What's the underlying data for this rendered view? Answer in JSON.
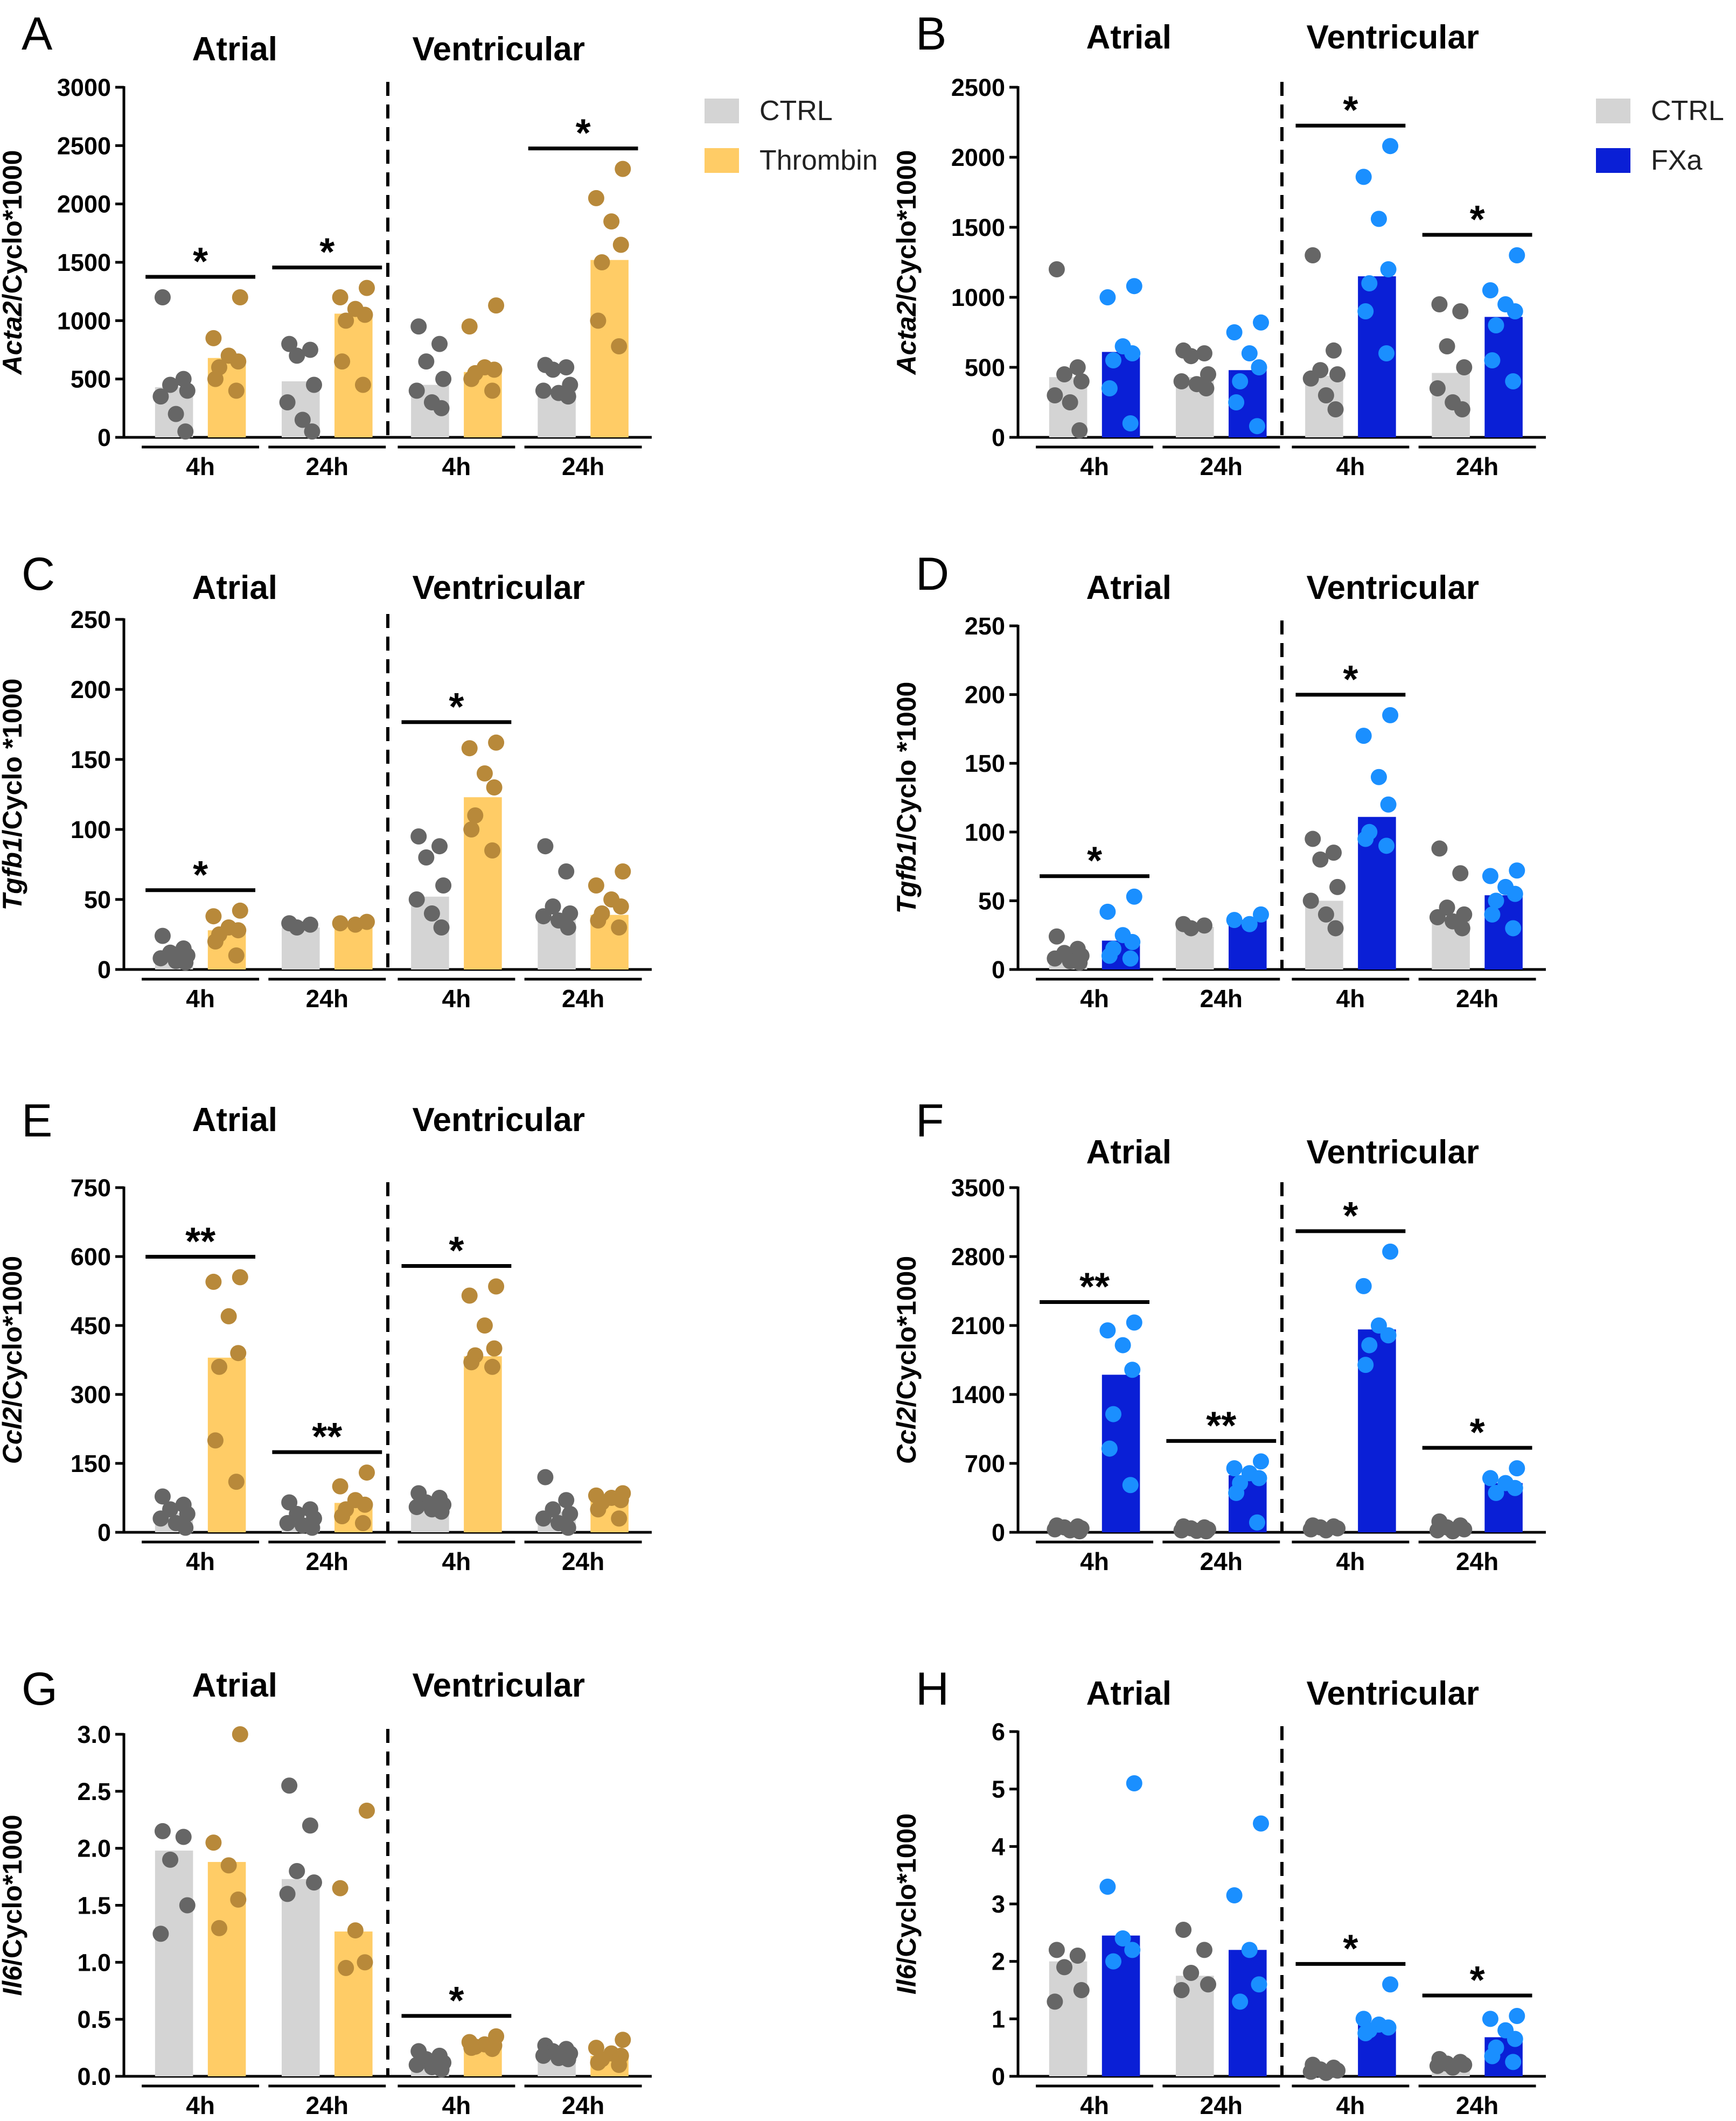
{
  "labels": {
    "atrial": "Atrial",
    "ventricular": "Ventricular",
    "t4": "4h",
    "t24": "24h"
  },
  "colors": {
    "ctrl_bar": "#d4d4d4",
    "ctrl_dot": "#666666",
    "thrombin_bar": "#ffcc66",
    "thrombin_dot": "#b8893a",
    "fxa_bar": "#0a1fd6",
    "fxa_dot": "#1a8fff"
  },
  "legends": {
    "left": [
      {
        "name": "CTRL",
        "color": "#d4d4d4"
      },
      {
        "name": "Thrombin",
        "color": "#ffcc66"
      }
    ],
    "right": [
      {
        "name": "CTRL",
        "color": "#d4d4d4"
      },
      {
        "name": "FXa",
        "color": "#0a1fd6"
      }
    ]
  },
  "chart_data": [
    {
      "panel": "A",
      "type": "bar",
      "treatment": "Thrombin",
      "ylabel_gene": "Acta2",
      "ylabel_rest": "/Cyclo*1000",
      "ylim": [
        0,
        3000
      ],
      "yticks": [
        "0",
        "500",
        "1000",
        "1500",
        "2000",
        "2500",
        "3000"
      ],
      "groups": [
        {
          "tissue": "Atrial",
          "time": "4h",
          "ctrl": 430,
          "treat": 680,
          "sig": "*",
          "ctrl_pts": [
            1200,
            500,
            450,
            400,
            350,
            200,
            50
          ],
          "treat_pts": [
            1200,
            850,
            700,
            650,
            600,
            500,
            400
          ]
        },
        {
          "tissue": "Atrial",
          "time": "24h",
          "ctrl": 480,
          "treat": 1060,
          "sig": "*",
          "ctrl_pts": [
            800,
            750,
            700,
            450,
            300,
            150,
            50
          ],
          "treat_pts": [
            1280,
            1200,
            1100,
            1050,
            1000,
            650,
            450
          ]
        },
        {
          "tissue": "Ventricular",
          "time": "4h",
          "ctrl": 450,
          "treat": 560,
          "sig": "",
          "ctrl_pts": [
            950,
            800,
            650,
            500,
            400,
            300,
            250
          ],
          "treat_pts": [
            1130,
            950,
            600,
            580,
            550,
            500,
            400
          ]
        },
        {
          "tissue": "Ventricular",
          "time": "24h",
          "ctrl": 400,
          "treat": 1520,
          "sig": "*",
          "ctrl_pts": [
            620,
            600,
            580,
            450,
            400,
            380,
            350
          ],
          "treat_pts": [
            2300,
            2050,
            1850,
            1650,
            1500,
            1000,
            780
          ]
        }
      ]
    },
    {
      "panel": "B",
      "type": "bar",
      "treatment": "FXa",
      "ylabel_gene": "Acta2",
      "ylabel_rest": "/Cyclo*1000",
      "ylim": [
        0,
        2500
      ],
      "yticks": [
        "0",
        "500",
        "1000",
        "1500",
        "2000",
        "2500"
      ],
      "groups": [
        {
          "tissue": "Atrial",
          "time": "4h",
          "ctrl": 430,
          "treat": 610,
          "sig": "",
          "ctrl_pts": [
            1200,
            500,
            450,
            400,
            300,
            250,
            50
          ],
          "treat_pts": [
            1080,
            1000,
            650,
            600,
            550,
            350,
            100
          ]
        },
        {
          "tissue": "Atrial",
          "time": "24h",
          "ctrl": 430,
          "treat": 480,
          "sig": "",
          "ctrl_pts": [
            620,
            600,
            580,
            450,
            400,
            380,
            350
          ],
          "treat_pts": [
            820,
            750,
            600,
            500,
            400,
            250,
            80
          ]
        },
        {
          "tissue": "Ventricular",
          "time": "4h",
          "ctrl": 440,
          "treat": 1150,
          "sig": "*",
          "ctrl_pts": [
            1300,
            620,
            480,
            450,
            420,
            300,
            200
          ],
          "treat_pts": [
            2080,
            1860,
            1560,
            1200,
            1100,
            900,
            600
          ]
        },
        {
          "tissue": "Ventricular",
          "time": "24h",
          "ctrl": 460,
          "treat": 860,
          "sig": "*",
          "ctrl_pts": [
            950,
            900,
            650,
            500,
            350,
            250,
            200
          ],
          "treat_pts": [
            1300,
            1050,
            950,
            900,
            800,
            550,
            400
          ]
        }
      ]
    },
    {
      "panel": "C",
      "type": "bar",
      "treatment": "Thrombin",
      "ylabel_gene": "Tgfb1",
      "ylabel_rest": "/Cyclo *1000",
      "ylim": [
        0,
        250
      ],
      "yticks": [
        "0",
        "50",
        "100",
        "150",
        "200",
        "250"
      ],
      "groups": [
        {
          "tissue": "Atrial",
          "time": "4h",
          "ctrl": 11,
          "treat": 28,
          "sig": "*",
          "ctrl_pts": [
            24,
            15,
            12,
            10,
            8,
            6,
            5
          ],
          "treat_pts": [
            42,
            38,
            30,
            28,
            25,
            20,
            10
          ]
        },
        {
          "tissue": "Atrial",
          "time": "24h",
          "ctrl": 30,
          "treat": 33,
          "sig": "",
          "ctrl_pts": [
            33,
            32,
            30
          ],
          "treat_pts": [
            34,
            33,
            32
          ]
        },
        {
          "tissue": "Ventricular",
          "time": "4h",
          "ctrl": 52,
          "treat": 123,
          "sig": "*",
          "ctrl_pts": [
            95,
            88,
            80,
            60,
            50,
            40,
            30
          ],
          "treat_pts": [
            162,
            158,
            140,
            130,
            110,
            100,
            85
          ]
        },
        {
          "tissue": "Ventricular",
          "time": "24h",
          "ctrl": 38,
          "treat": 39,
          "sig": "",
          "ctrl_pts": [
            88,
            70,
            45,
            40,
            38,
            35,
            30
          ],
          "treat_pts": [
            70,
            60,
            50,
            45,
            40,
            35,
            30
          ]
        }
      ]
    },
    {
      "panel": "D",
      "type": "bar",
      "treatment": "FXa",
      "ylabel_gene": "Tgfb1",
      "ylabel_rest": "/Cyclo *1000",
      "ylim": [
        0,
        250
      ],
      "yticks": [
        "0",
        "50",
        "100",
        "150",
        "200",
        "250"
      ],
      "groups": [
        {
          "tissue": "Atrial",
          "time": "4h",
          "ctrl": 10,
          "treat": 21,
          "sig": "*",
          "ctrl_pts": [
            24,
            15,
            12,
            10,
            8,
            6,
            5
          ],
          "treat_pts": [
            53,
            42,
            25,
            20,
            15,
            10,
            8
          ]
        },
        {
          "tissue": "Atrial",
          "time": "24h",
          "ctrl": 31,
          "treat": 36,
          "sig": "",
          "ctrl_pts": [
            33,
            32,
            30
          ],
          "treat_pts": [
            40,
            36,
            33
          ]
        },
        {
          "tissue": "Ventricular",
          "time": "4h",
          "ctrl": 50,
          "treat": 111,
          "sig": "*",
          "ctrl_pts": [
            95,
            85,
            80,
            60,
            50,
            40,
            30
          ],
          "treat_pts": [
            185,
            170,
            140,
            120,
            100,
            95,
            90
          ]
        },
        {
          "tissue": "Ventricular",
          "time": "24h",
          "ctrl": 40,
          "treat": 54,
          "sig": "",
          "ctrl_pts": [
            88,
            70,
            45,
            40,
            38,
            35,
            30
          ],
          "treat_pts": [
            72,
            68,
            60,
            55,
            50,
            40,
            30
          ]
        }
      ]
    },
    {
      "panel": "E",
      "type": "bar",
      "treatment": "Thrombin",
      "ylabel_gene": "Ccl2",
      "ylabel_rest": "/Cyclo*1000",
      "ylim": [
        0,
        750
      ],
      "yticks": [
        "0",
        "150",
        "300",
        "450",
        "600",
        "750"
      ],
      "groups": [
        {
          "tissue": "Atrial",
          "time": "4h",
          "ctrl": 42,
          "treat": 380,
          "sig": "**",
          "ctrl_pts": [
            78,
            60,
            50,
            40,
            30,
            20,
            10
          ],
          "treat_pts": [
            555,
            545,
            470,
            390,
            360,
            200,
            110
          ]
        },
        {
          "tissue": "Atrial",
          "time": "24h",
          "ctrl": 32,
          "treat": 64,
          "sig": "**",
          "ctrl_pts": [
            65,
            50,
            40,
            30,
            20,
            15,
            10
          ],
          "treat_pts": [
            130,
            100,
            70,
            60,
            50,
            35,
            20
          ]
        },
        {
          "tissue": "Ventricular",
          "time": "4h",
          "ctrl": 58,
          "treat": 383,
          "sig": "*",
          "ctrl_pts": [
            85,
            75,
            65,
            60,
            55,
            50,
            45
          ],
          "treat_pts": [
            535,
            515,
            450,
            400,
            385,
            370,
            360
          ]
        },
        {
          "tissue": "Ventricular",
          "time": "24h",
          "ctrl": 45,
          "treat": 70,
          "sig": "",
          "ctrl_pts": [
            120,
            70,
            50,
            40,
            30,
            20,
            10
          ],
          "treat_pts": [
            85,
            80,
            75,
            70,
            65,
            50,
            30
          ]
        }
      ]
    },
    {
      "panel": "F",
      "type": "bar",
      "treatment": "FXa",
      "ylabel_gene": "Ccl2",
      "ylabel_rest": "/Cyclo*1000",
      "ylim": [
        0,
        3500
      ],
      "yticks": [
        "0",
        "700",
        "1400",
        "2100",
        "2800",
        "3500"
      ],
      "groups": [
        {
          "tissue": "Atrial",
          "time": "4h",
          "ctrl": 40,
          "treat": 1600,
          "sig": "**",
          "ctrl_pts": [
            70,
            60,
            50,
            40,
            30,
            20,
            10
          ],
          "treat_pts": [
            2130,
            2050,
            1900,
            1650,
            1200,
            850,
            480
          ]
        },
        {
          "tissue": "Atrial",
          "time": "24h",
          "ctrl": 30,
          "treat": 580,
          "sig": "**",
          "ctrl_pts": [
            60,
            50,
            40,
            30,
            20,
            15,
            10
          ],
          "treat_pts": [
            720,
            650,
            600,
            550,
            500,
            400,
            100
          ]
        },
        {
          "tissue": "Ventricular",
          "time": "4h",
          "ctrl": 45,
          "treat": 2060,
          "sig": "*",
          "ctrl_pts": [
            70,
            60,
            50,
            40,
            30,
            20
          ],
          "treat_pts": [
            2850,
            2500,
            2100,
            2000,
            1900,
            1700
          ]
        },
        {
          "tissue": "Ventricular",
          "time": "24h",
          "ctrl": 40,
          "treat": 500,
          "sig": "*",
          "ctrl_pts": [
            110,
            70,
            50,
            30,
            20,
            10
          ],
          "treat_pts": [
            650,
            550,
            500,
            450,
            400
          ]
        }
      ]
    },
    {
      "panel": "G",
      "type": "bar",
      "treatment": "Thrombin",
      "ylabel_gene": "Il6",
      "ylabel_rest": "/Cyclo*1000",
      "ylim": [
        0,
        3
      ],
      "yticks": [
        "0.0",
        "0.5",
        "1.0",
        "1.5",
        "2.0",
        "2.5",
        "3.0"
      ],
      "groups": [
        {
          "tissue": "Atrial",
          "time": "4h",
          "ctrl": 1.98,
          "treat": 1.88,
          "sig": "",
          "ctrl_pts": [
            2.15,
            2.1,
            1.9,
            1.5,
            1.25
          ],
          "treat_pts": [
            3.0,
            2.05,
            1.85,
            1.55,
            1.3
          ]
        },
        {
          "tissue": "Atrial",
          "time": "24h",
          "ctrl": 1.73,
          "treat": 1.27,
          "sig": "",
          "ctrl_pts": [
            2.55,
            2.2,
            1.8,
            1.7,
            1.6
          ],
          "treat_pts": [
            2.33,
            1.65,
            1.28,
            1.0,
            0.95
          ]
        },
        {
          "tissue": "Ventricular",
          "time": "4h",
          "ctrl": 0.15,
          "treat": 0.28,
          "sig": "*",
          "ctrl_pts": [
            0.22,
            0.18,
            0.15,
            0.12,
            0.1,
            0.08,
            0.06
          ],
          "treat_pts": [
            0.35,
            0.3,
            0.28,
            0.27,
            0.26,
            0.25,
            0.24
          ]
        },
        {
          "tissue": "Ventricular",
          "time": "24h",
          "ctrl": 0.2,
          "treat": 0.18,
          "sig": "",
          "ctrl_pts": [
            0.27,
            0.24,
            0.22,
            0.2,
            0.18,
            0.16,
            0.15
          ],
          "treat_pts": [
            0.32,
            0.25,
            0.2,
            0.18,
            0.15,
            0.12,
            0.1
          ]
        }
      ]
    },
    {
      "panel": "H",
      "type": "bar",
      "treatment": "FXa",
      "ylabel_gene": "Il6",
      "ylabel_rest": "/Cyclo*1000",
      "ylim": [
        0,
        6
      ],
      "yticks": [
        "0",
        "1",
        "2",
        "3",
        "4",
        "5",
        "6"
      ],
      "groups": [
        {
          "tissue": "Atrial",
          "time": "4h",
          "ctrl": 2.0,
          "treat": 2.45,
          "sig": "",
          "ctrl_pts": [
            2.2,
            2.1,
            1.9,
            1.5,
            1.3
          ],
          "treat_pts": [
            5.1,
            3.3,
            2.4,
            2.2,
            2.0
          ]
        },
        {
          "tissue": "Atrial",
          "time": "24h",
          "ctrl": 1.75,
          "treat": 2.2,
          "sig": "",
          "ctrl_pts": [
            2.55,
            2.2,
            1.8,
            1.6,
            1.5
          ],
          "treat_pts": [
            4.4,
            3.15,
            2.2,
            1.6,
            1.3
          ]
        },
        {
          "tissue": "Ventricular",
          "time": "4h",
          "ctrl": 0.12,
          "treat": 0.9,
          "sig": "*",
          "ctrl_pts": [
            0.2,
            0.15,
            0.12,
            0.1,
            0.08,
            0.06
          ],
          "treat_pts": [
            1.6,
            1.0,
            0.9,
            0.85,
            0.8,
            0.75
          ]
        },
        {
          "tissue": "Ventricular",
          "time": "24h",
          "ctrl": 0.22,
          "treat": 0.68,
          "sig": "*",
          "ctrl_pts": [
            0.3,
            0.25,
            0.22,
            0.2,
            0.18,
            0.15
          ],
          "treat_pts": [
            1.05,
            1.0,
            0.8,
            0.65,
            0.5,
            0.35,
            0.25
          ]
        }
      ]
    }
  ]
}
